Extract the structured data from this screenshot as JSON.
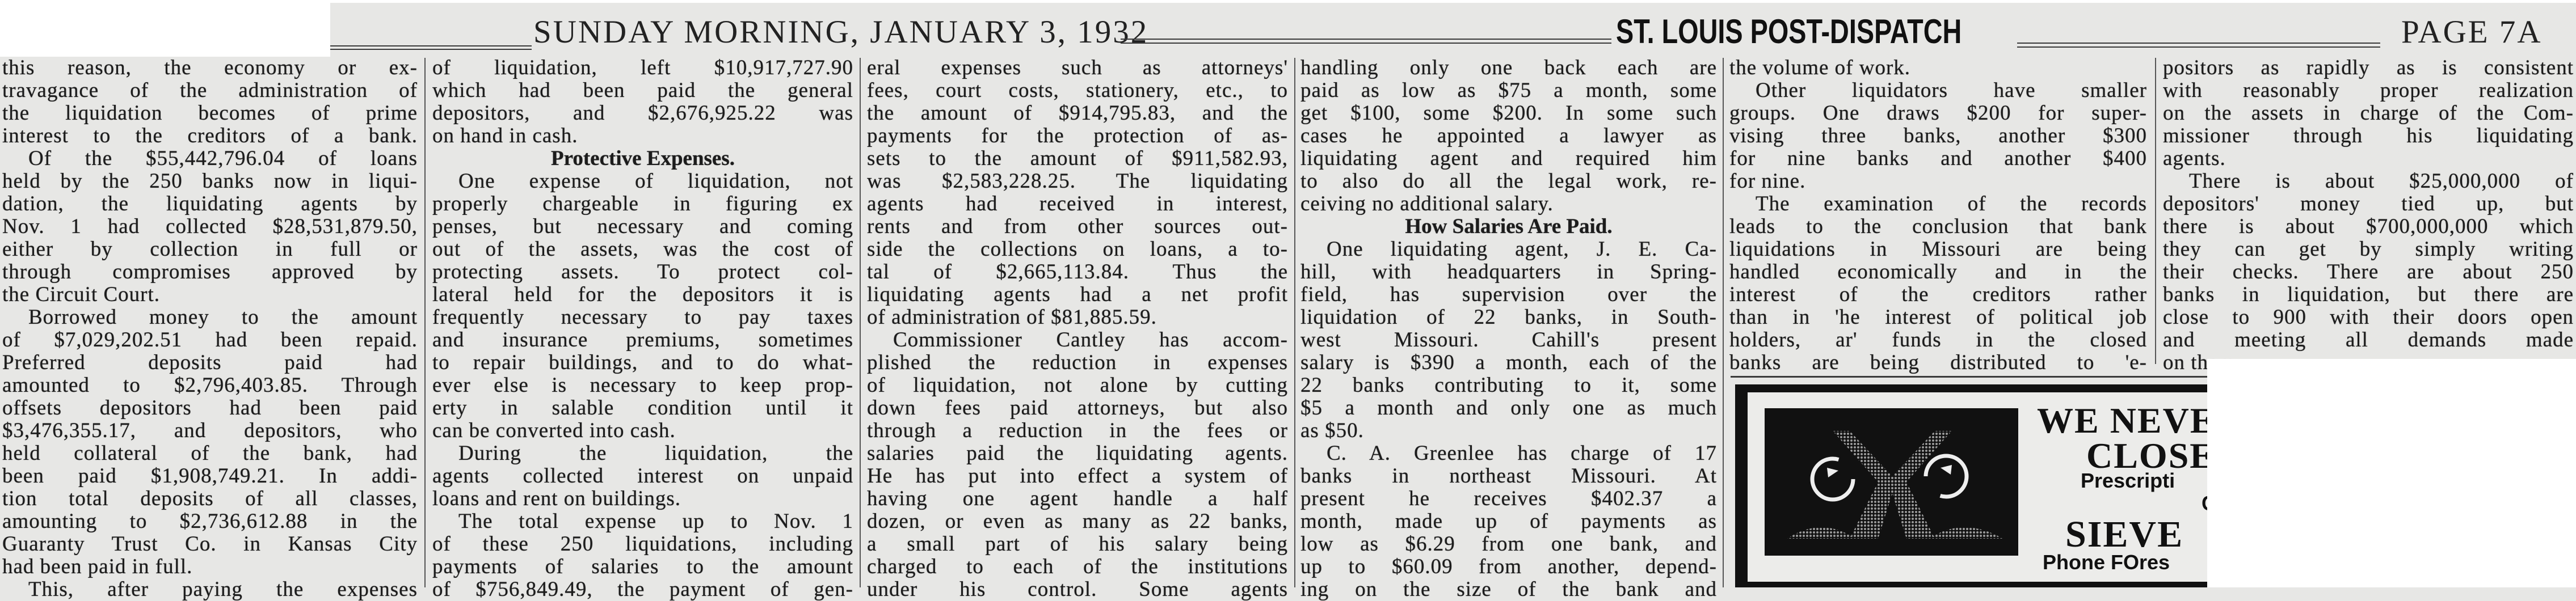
{
  "masthead": {
    "dateline": "SUNDAY MORNING, JANUARY 3, 1932",
    "newspaper": "ST. LOUIS POST-DISPATCH",
    "page": "PAGE 7A"
  },
  "columns": [
    {
      "lines": [
        {
          "text": "this reason, the economy or ex-",
          "style": "full"
        },
        {
          "text": "travagance of the administration of",
          "style": "full"
        },
        {
          "text": "the liquidation becomes of prime",
          "style": "full"
        },
        {
          "text": "interest to the creditors of a bank.",
          "style": "full"
        },
        {
          "text": "Of the $55,442,796.04 of loans",
          "style": "indent"
        },
        {
          "text": "held by the 250 banks now in liqui-",
          "style": "full"
        },
        {
          "text": "dation, the liquidating agents by",
          "style": "full"
        },
        {
          "text": "Nov. 1 had collected $28,531,879.50,",
          "style": "full"
        },
        {
          "text": "either by collection in full or",
          "style": "full"
        },
        {
          "text": "through compromises approved by",
          "style": "full"
        },
        {
          "text": "the Circuit Court.",
          "style": "end"
        },
        {
          "text": "Borrowed money to the amount",
          "style": "indent"
        },
        {
          "text": "of $7,029,202.51 had been repaid.",
          "style": "full"
        },
        {
          "text": "Preferred deposits paid had",
          "style": "full"
        },
        {
          "text": "amounted to $2,796,403.85. Through",
          "style": "full"
        },
        {
          "text": "offsets depositors had been paid",
          "style": "full"
        },
        {
          "text": "$3,476,355.17, and depositors, who",
          "style": "full"
        },
        {
          "text": "held collateral of the bank, had",
          "style": "full"
        },
        {
          "text": "been paid $1,908,749.21. In addi-",
          "style": "full"
        },
        {
          "text": "tion total deposits of all classes,",
          "style": "full"
        },
        {
          "text": "amounting to $2,736,612.88 in the",
          "style": "full"
        },
        {
          "text": "Guaranty Trust Co. in Kansas City",
          "style": "full"
        },
        {
          "text": "had been paid in full.",
          "style": "end"
        },
        {
          "text": "This, after paying the expenses",
          "style": "indent"
        }
      ]
    },
    {
      "lines": [
        {
          "text": "of liquidation, left $10,917,727.90",
          "style": "full"
        },
        {
          "text": "which had been paid the general",
          "style": "full"
        },
        {
          "text": "depositors, and $2,676,925.22 was",
          "style": "full"
        },
        {
          "text": "on hand in cash.",
          "style": "end"
        },
        {
          "text": "Protective Expenses.",
          "style": "heading"
        },
        {
          "text": "One expense of liquidation, not",
          "style": "indent"
        },
        {
          "text": "properly chargeable in figuring ex",
          "style": "full"
        },
        {
          "text": "penses, but necessary and coming",
          "style": "full"
        },
        {
          "text": "out of the assets, was the cost of",
          "style": "full"
        },
        {
          "text": "protecting assets. To protect col-",
          "style": "full"
        },
        {
          "text": "lateral held for the depositors it is",
          "style": "full"
        },
        {
          "text": "frequently necessary to pay taxes",
          "style": "full"
        },
        {
          "text": "and insurance premiums, sometimes",
          "style": "full"
        },
        {
          "text": "to repair buildings, and to do what-",
          "style": "full"
        },
        {
          "text": "ever else is necessary to keep prop-",
          "style": "full"
        },
        {
          "text": "erty in salable condition until it",
          "style": "full"
        },
        {
          "text": "can be converted into cash.",
          "style": "end"
        },
        {
          "text": "During the liquidation, the",
          "style": "indent"
        },
        {
          "text": "agents collected interest on unpaid",
          "style": "full"
        },
        {
          "text": "loans and rent on buildings.",
          "style": "end"
        },
        {
          "text": "The total expense up to Nov. 1",
          "style": "indent"
        },
        {
          "text": "of these 250 liquidations, including",
          "style": "full"
        },
        {
          "text": "payments of salaries to the amount",
          "style": "full"
        },
        {
          "text": "of $756,849.49, the payment of gen-",
          "style": "full"
        }
      ]
    },
    {
      "lines": [
        {
          "text": "eral expenses such as attorneys'",
          "style": "full"
        },
        {
          "text": "fees, court costs, stationery, etc., to",
          "style": "full"
        },
        {
          "text": "the amount of $914,795.83, and the",
          "style": "full"
        },
        {
          "text": "payments for the protection of as-",
          "style": "full"
        },
        {
          "text": "sets to the amount of $911,582.93,",
          "style": "full"
        },
        {
          "text": "was $2,583,228.25. The liquidating",
          "style": "full"
        },
        {
          "text": "agents had received in interest,",
          "style": "full"
        },
        {
          "text": "rents and from other sources out-",
          "style": "full"
        },
        {
          "text": "side the collections on loans, a to-",
          "style": "full"
        },
        {
          "text": "tal of $2,665,113.84. Thus the",
          "style": "full"
        },
        {
          "text": "liquidating agents had a net profit",
          "style": "full"
        },
        {
          "text": "of administration of $81,885.59.",
          "style": "end"
        },
        {
          "text": "Commissioner Cantley has accom-",
          "style": "indent"
        },
        {
          "text": "plished the reduction in expenses",
          "style": "full"
        },
        {
          "text": "of liquidation, not alone by cutting",
          "style": "full"
        },
        {
          "text": "down fees paid attorneys, but also",
          "style": "full"
        },
        {
          "text": "through a reduction in the fees or",
          "style": "full"
        },
        {
          "text": "salaries paid the liquidating agents.",
          "style": "full"
        },
        {
          "text": "He has put into effect a system of",
          "style": "full"
        },
        {
          "text": "having one agent handle a half",
          "style": "full"
        },
        {
          "text": "dozen, or even as many as 22 banks,",
          "style": "full"
        },
        {
          "text": "a small part of his salary being",
          "style": "full"
        },
        {
          "text": "charged to each of the institutions",
          "style": "full"
        },
        {
          "text": "under his control. Some agents",
          "style": "full"
        }
      ]
    },
    {
      "lines": [
        {
          "text": "handling only one back each are",
          "style": "full"
        },
        {
          "text": "paid as low as $75 a month, some",
          "style": "full"
        },
        {
          "text": "get $100, some $200. In some such",
          "style": "full"
        },
        {
          "text": "cases he appointed a lawyer as",
          "style": "full"
        },
        {
          "text": "liquidating agent and required him",
          "style": "full"
        },
        {
          "text": "to also do all the legal work, re-",
          "style": "full"
        },
        {
          "text": "ceiving no additional salary.",
          "style": "end"
        },
        {
          "text": "How Salaries Are Paid.",
          "style": "heading"
        },
        {
          "text": "One liquidating agent, J. E. Ca-",
          "style": "indent"
        },
        {
          "text": "hill, with headquarters in Spring-",
          "style": "full"
        },
        {
          "text": "field, has supervision over the",
          "style": "full"
        },
        {
          "text": "liquidation of 22 banks, in South-",
          "style": "full"
        },
        {
          "text": "west Missouri. Cahill's present",
          "style": "full"
        },
        {
          "text": "salary is $390 a month, each of the",
          "style": "full"
        },
        {
          "text": "22 banks contributing to it, some",
          "style": "full"
        },
        {
          "text": "$5 a month and only one as much",
          "style": "full"
        },
        {
          "text": "as $50.",
          "style": "end"
        },
        {
          "text": "C. A. Greenlee has charge of 17",
          "style": "indent"
        },
        {
          "text": "banks in northeast Missouri. At",
          "style": "full"
        },
        {
          "text": "present he receives $402.37 a",
          "style": "full"
        },
        {
          "text": "month, made up of payments as",
          "style": "full"
        },
        {
          "text": "low as $6.29 from one bank, and",
          "style": "full"
        },
        {
          "text": "up to $60.09 from another, depend-",
          "style": "full"
        },
        {
          "text": "ing on the size of the bank and",
          "style": "full"
        }
      ]
    },
    {
      "lines": [
        {
          "text": "the volume of work.",
          "style": "end"
        },
        {
          "text": "Other liquidators have smaller",
          "style": "indent"
        },
        {
          "text": "groups. One draws $200 for super-",
          "style": "full"
        },
        {
          "text": "vising three banks, another $300",
          "style": "full"
        },
        {
          "text": "for nine banks and another $400",
          "style": "full"
        },
        {
          "text": "for nine.",
          "style": "end"
        },
        {
          "text": "The examination of the records",
          "style": "indent"
        },
        {
          "text": "leads to the conclusion that bank",
          "style": "full"
        },
        {
          "text": "liquidations in Missouri are being",
          "style": "full"
        },
        {
          "text": "handled economically and in the",
          "style": "full"
        },
        {
          "text": "interest of the creditors rather",
          "style": "full"
        },
        {
          "text": "than in 'he interest of political job",
          "style": "full"
        },
        {
          "text": "holders, ar' funds in the closed",
          "style": "full"
        },
        {
          "text": "banks are being distributed to 'e-",
          "style": "full"
        }
      ]
    },
    {
      "lines": [
        {
          "text": "positors as rapidly as is consistent",
          "style": "full"
        },
        {
          "text": "with reasonably proper realization",
          "style": "full"
        },
        {
          "text": "on the assets in charge of the Com-",
          "style": "full"
        },
        {
          "text": "missioner through his liquidating",
          "style": "full"
        },
        {
          "text": "agents.",
          "style": "end"
        },
        {
          "text": "There is about $25,000,000 of",
          "style": "indent"
        },
        {
          "text": "depositors' money tied up, but",
          "style": "full"
        },
        {
          "text": "there is about $700,000,000 which",
          "style": "full"
        },
        {
          "text": "they can get by simply writing",
          "style": "full"
        },
        {
          "text": "their checks. There are about 250",
          "style": "full"
        },
        {
          "text": "banks in liquidation, but there are",
          "style": "full"
        },
        {
          "text": "close to 900 with their doors open",
          "style": "full"
        },
        {
          "text": "and meeting all demands made",
          "style": "full"
        },
        {
          "text": "on them.",
          "style": "end"
        }
      ]
    }
  ],
  "advertisement": {
    "line1": "WE NEVE",
    "line2": "CLOSE",
    "line3": "Prescripti",
    "line4": "C",
    "line5": "SIEVE",
    "line6": "Phone FOres",
    "image": "owl-illustration"
  }
}
